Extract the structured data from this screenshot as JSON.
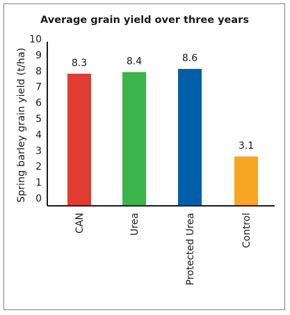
{
  "chart_data": {
    "type": "bar",
    "title": "Average grain yield over three years",
    "ylabel": "Spring barley grain yield (t/ha)",
    "xlabel": "",
    "ylim": [
      0,
      10
    ],
    "yticks": [
      0,
      1,
      2,
      3,
      4,
      5,
      6,
      7,
      8,
      9,
      10
    ],
    "categories": [
      "CAN",
      "Urea",
      "Protected Urea",
      "Control"
    ],
    "values": [
      8.3,
      8.4,
      8.6,
      3.1
    ],
    "value_labels": [
      "8.3",
      "8.4",
      "8.6",
      "3.1"
    ],
    "colors": [
      "#e03c31",
      "#3cb54a",
      "#005fa8",
      "#f7a623"
    ],
    "grid": false,
    "legend": "none"
  }
}
